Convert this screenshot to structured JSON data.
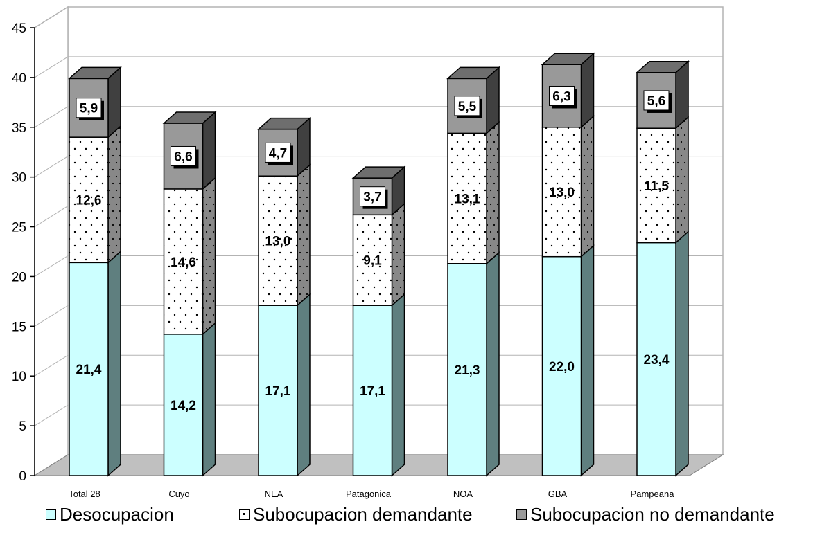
{
  "chart_data": {
    "type": "bar",
    "stacked": true,
    "three_d": true,
    "categories": [
      "Total 28",
      "Cuyo",
      "NEA",
      "Patagonica",
      "NOA",
      "GBA",
      "Pampeana"
    ],
    "series": [
      {
        "name": "Desocupacion",
        "values": [
          21.4,
          14.2,
          17.1,
          17.1,
          21.3,
          22.0,
          23.4
        ],
        "labels": [
          "21,4",
          "14,2",
          "17,1",
          "17,1",
          "21,3",
          "22,0",
          "23,4"
        ],
        "color": "#ccffff"
      },
      {
        "name": "Subocupacion demandante",
        "values": [
          12.6,
          14.6,
          13.0,
          9.1,
          13.1,
          13.0,
          11.5
        ],
        "labels": [
          "12,6",
          "14,6",
          "13,0",
          "9,1",
          "13,1",
          "13,0",
          "11,5"
        ],
        "color": "#ffffff"
      },
      {
        "name": "Subocupacion no demandante",
        "values": [
          5.9,
          6.6,
          4.7,
          3.7,
          5.5,
          6.3,
          5.6
        ],
        "labels": [
          "5,9",
          "6,6",
          "4,7",
          "3,7",
          "5,5",
          "6,3",
          "5,6"
        ],
        "color": "#999999"
      }
    ],
    "yticks": [
      "0",
      "5",
      "10",
      "15",
      "20",
      "25",
      "30",
      "35",
      "40",
      "45"
    ],
    "ylim": [
      0,
      45
    ],
    "grid": true,
    "legend_position": "bottom"
  }
}
